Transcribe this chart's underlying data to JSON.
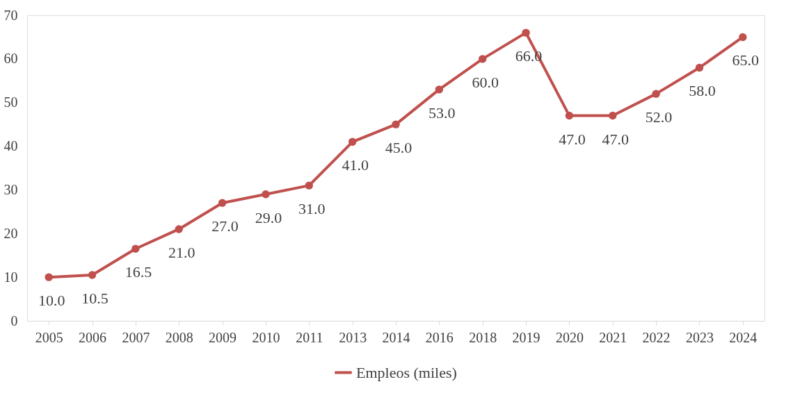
{
  "chart_data": {
    "type": "line",
    "categories": [
      "2005",
      "2006",
      "2007",
      "2008",
      "2009",
      "2010",
      "2011",
      "2013",
      "2014",
      "2016",
      "2018",
      "2019",
      "2020",
      "2021",
      "2022",
      "2023",
      "2024"
    ],
    "series": [
      {
        "name": "Empleos (miles)",
        "color": "#c0504d",
        "values": [
          10.0,
          10.5,
          16.5,
          21.0,
          27.0,
          29.0,
          31.0,
          41.0,
          45.0,
          53.0,
          60.0,
          66.0,
          47.0,
          47.0,
          52.0,
          58.0,
          65.0
        ]
      }
    ],
    "ylim": [
      0,
      70
    ],
    "yticks": [
      0,
      10,
      20,
      30,
      40,
      50,
      60,
      70
    ],
    "value_labels": [
      "10.0",
      "10.5",
      "16.5",
      "21.0",
      "27.0",
      "29.0",
      "31.0",
      "41.0",
      "45.0",
      "53.0",
      "60.0",
      "66.0",
      "47.0",
      "47.0",
      "52.0",
      "58.0",
      "65.0"
    ],
    "grid": false,
    "legend": "bottom",
    "marker": "circle",
    "line_style": "solid"
  }
}
